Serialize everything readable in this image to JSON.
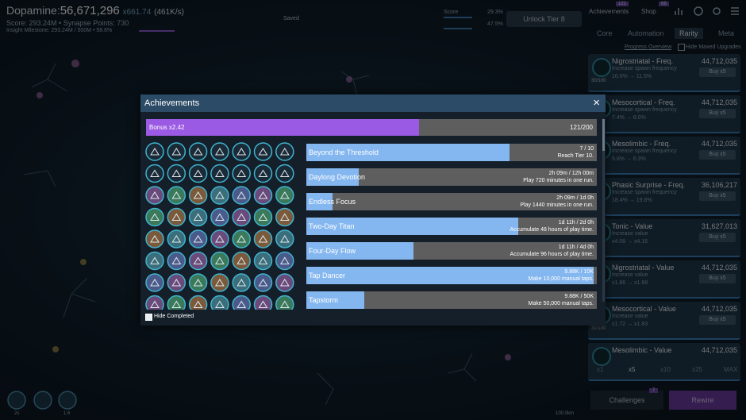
{
  "header": {
    "dopamine_label": "Dopamine:",
    "dopamine": "56,671,296",
    "multiplier": "x661.74",
    "rate": "(461K/s)",
    "score_line": "Score: 293.24M • Synapse Points: 730",
    "milestone_line": "Insight Milestone: 293.24M / 500M •",
    "milestone_pct": "58.6%",
    "status": "Saved"
  },
  "progress": [
    {
      "label": "Score",
      "value": "29.3%"
    },
    {
      "value": "47.5%"
    }
  ],
  "unlock_button": "Unlock Tier 8",
  "nav": [
    {
      "label": "Achievements",
      "badge": "121"
    },
    {
      "label": "Shop",
      "badge": "68"
    }
  ],
  "tabs": [
    "Core",
    "Automation",
    "Rarity",
    "Meta"
  ],
  "filters": {
    "progress_overview": "Progress Overview",
    "hide_maxed": "Hide Maxed Upgrades"
  },
  "upgrades": [
    {
      "title": "Nigrostriatal - Freq.",
      "cost": "44,712,035",
      "desc": "Increase spawn frequency",
      "change": "10.6% → 11.5%",
      "buy": "Buy x5",
      "level": "30/100"
    },
    {
      "title": "Mesocortical - Freq.",
      "cost": "44,712,035",
      "desc": "Increase spawn frequency",
      "change": "7.4% → 8.0%",
      "buy": "Buy x5"
    },
    {
      "title": "Mesolimbic - Freq.",
      "cost": "44,712,035",
      "desc": "Increase spawn frequency",
      "change": "5.8% → 6.3%",
      "buy": "Buy x5"
    },
    {
      "title": "Phasic Surprise - Freq.",
      "cost": "36,106,217",
      "desc": "Increase spawn frequency",
      "change": "18.4% → 19.8%",
      "buy": "Buy x5"
    },
    {
      "title": "Tonic - Value",
      "cost": "31,627,013",
      "desc": "Increase value",
      "change": "x4.08 → x4.16",
      "buy": "Buy x5"
    },
    {
      "title": "Nigrostriatal - Value",
      "cost": "44,712,035",
      "desc": "Increase value",
      "change": "x1.66 → x1.68",
      "buy": "Buy x5"
    },
    {
      "title": "Mesocortical - Value",
      "cost": "44,712,035",
      "desc": "Increase value",
      "change": "x1.72 → x1.83",
      "buy": "Buy x5",
      "level": "30/100"
    },
    {
      "title": "Mesolimbic - Value",
      "cost": "44,712,035"
    }
  ],
  "buy_amounts": [
    "x1",
    "x5",
    "x10",
    "x25",
    "MAX"
  ],
  "bottom": {
    "challenges": "Challenges",
    "challenges_badge": "7",
    "rewire": "Rewire",
    "distance": "100.0km",
    "ability_labels": [
      "2s",
      "1.6"
    ]
  },
  "modal": {
    "title": "Achievements",
    "close": "×",
    "bonus_label": "Bonus x2.42",
    "bonus_count": "121/200",
    "hide_completed": "Hide Completed",
    "achievements": [
      {
        "name": "Beyond the Threshold",
        "progress": "7 / 10",
        "desc": "Reach Tier 10."
      },
      {
        "name": "Daylong Devotion",
        "progress": "2h 09m / 12h 00m",
        "desc": "Play 720 minutes in one run."
      },
      {
        "name": "Endless Focus",
        "progress": "2h 09m / 1d 0h",
        "desc": "Play 1440 minutes in one run."
      },
      {
        "name": "Two-Day Titan",
        "progress": "1d 11h / 2d 0h",
        "desc": "Accumulate 48 hours of play time."
      },
      {
        "name": "Four-Day Flow",
        "progress": "1d 11h / 4d 0h",
        "desc": "Accumulate 96 hours of play time."
      },
      {
        "name": "Tap Dancer",
        "progress": "9.88K / 10K",
        "desc": "Make 10,000 manual taps."
      },
      {
        "name": "Tapstorm",
        "progress": "9.88K / 50K",
        "desc": "Make 50,000 manual taps."
      }
    ]
  }
}
